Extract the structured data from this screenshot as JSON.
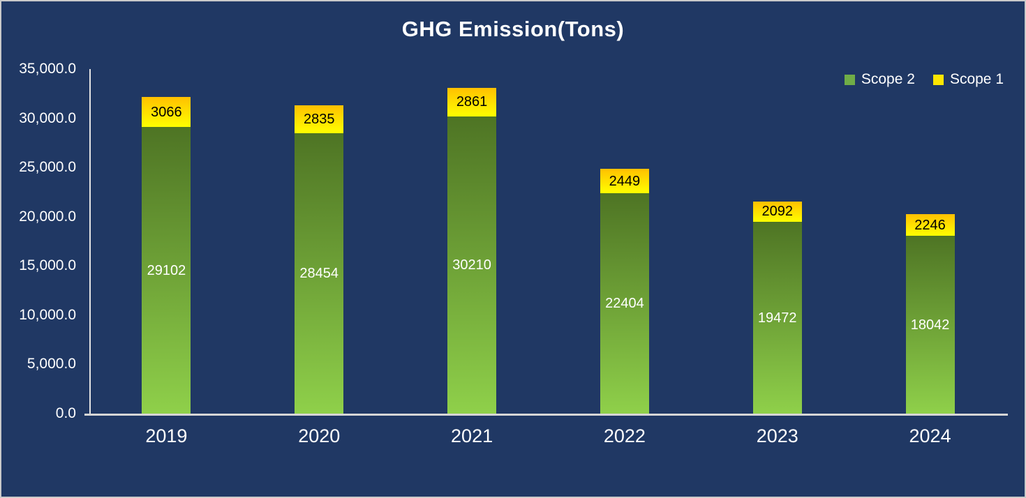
{
  "window": {
    "background_color": "#203864",
    "border_color": "#C9C9C9",
    "text_color": "#FFFFFF",
    "axis_line_color": "#D9D9D9"
  },
  "chart_data": {
    "type": "bar",
    "stacked": true,
    "title": "GHG Emission(Tons)",
    "categories": [
      "2019",
      "2020",
      "2021",
      "2022",
      "2023",
      "2024"
    ],
    "series": [
      {
        "name": "Scope 2",
        "values": [
          29102,
          28454,
          30210,
          22404,
          19472,
          18042
        ],
        "gradient_top": "#4E7424",
        "gradient_bottom": "#8FD04A",
        "legend_color": "#70AD47",
        "label_color": "#FFFFFF"
      },
      {
        "name": "Scope 1",
        "values": [
          3066,
          2835,
          2861,
          2449,
          2092,
          2246
        ],
        "gradient_top": "#FFC000",
        "gradient_bottom": "#FFFF00",
        "legend_color": "#FFE600",
        "label_color": "#000000"
      }
    ],
    "stack_order_bottom_to_top": [
      "Scope 2",
      "Scope 1"
    ],
    "totals": [
      32168,
      31289,
      33071,
      24853,
      21564,
      20288
    ],
    "ylim": [
      0,
      35000
    ],
    "ytick_step": 5000,
    "yticks": [
      {
        "value": 0,
        "label": "0.0"
      },
      {
        "value": 5000,
        "label": "5,000.0"
      },
      {
        "value": 10000,
        "label": "10,000.0"
      },
      {
        "value": 15000,
        "label": "15,000.0"
      },
      {
        "value": 20000,
        "label": "20,000.0"
      },
      {
        "value": 25000,
        "label": "25,000.0"
      },
      {
        "value": 30000,
        "label": "30,000.0"
      },
      {
        "value": 35000,
        "label": "35,000.0"
      }
    ],
    "legend": {
      "position": "top-right",
      "items": [
        "Scope 2",
        "Scope 1"
      ]
    },
    "grid": false,
    "xlabel": "",
    "ylabel": ""
  }
}
